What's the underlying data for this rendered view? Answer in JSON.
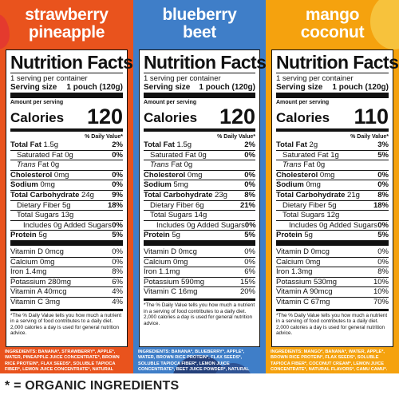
{
  "columns": [
    {
      "flavor_line1": "strawberry",
      "flavor_line2": "pineapple",
      "title": "Nutrition Facts",
      "servings_per_container": "1 serving per container",
      "serving_size_label": "Serving size",
      "serving_size_value": "1 pouch (120g)",
      "amount_per_serving": "Amount per serving",
      "calories_label": "Calories",
      "calories": "120",
      "dv_header": "% Daily Value*",
      "rows": [
        {
          "label": "Total Fat",
          "amount": "1.5g",
          "pct": "2%"
        },
        {
          "label": "Saturated Fat",
          "amount": "0g",
          "pct": "0%"
        },
        {
          "label": "Trans",
          "amount": "Fat 0g",
          "pct": ""
        },
        {
          "label": "Cholesterol",
          "amount": "0mg",
          "pct": "0%"
        },
        {
          "label": "Sodium",
          "amount": "0mg",
          "pct": "0%"
        },
        {
          "label": "Total Carbohydrate",
          "amount": "24g",
          "pct": "9%"
        },
        {
          "label": "Dietary Fiber",
          "amount": "5g",
          "pct": "18%"
        },
        {
          "label": "Total Sugars",
          "amount": "13g",
          "pct": ""
        },
        {
          "label": "Includes 0g Added Sugars",
          "amount": "",
          "pct": "0%"
        },
        {
          "label": "Protein",
          "amount": "5g",
          "pct": "5%"
        }
      ],
      "vitamins": [
        {
          "label": "Vitamin D 0mcg",
          "pct": "0%"
        },
        {
          "label": "Calcium 0mg",
          "pct": "0%"
        },
        {
          "label": "Iron 1.4mg",
          "pct": "8%"
        },
        {
          "label": "Potassium 280mg",
          "pct": "6%"
        },
        {
          "label": "Vitamin A 40mcg",
          "pct": "4%"
        },
        {
          "label": "Vitamin C 3mg",
          "pct": "4%"
        }
      ],
      "footnote": "*The % Daily Value tells you how much a nutrient in a serving of food contributes to a daily diet. 2,000 calories a day is used for general nutrition advice.",
      "ingredients": "INGREDIENTS: BANANA*, STRAWBERRY*, APPLE*, WATER, PINEAPPLE JUICE CONCENTRATE*, BROWN RICE PROTEIN*, FLAX SEEDS*, SOLUBLE TAPIOCA FIBER*, LEMON JUICE CONCENTRATE*, NATURAL FLAVORS*, CAMU CAMU*."
    },
    {
      "flavor_line1": "blueberry",
      "flavor_line2": "beet",
      "title": "Nutrition Facts",
      "servings_per_container": "1 serving per container",
      "serving_size_label": "Serving size",
      "serving_size_value": "1 pouch (120g)",
      "amount_per_serving": "Amount per serving",
      "calories_label": "Calories",
      "calories": "120",
      "dv_header": "% Daily Value*",
      "rows": [
        {
          "label": "Total Fat",
          "amount": "1.5g",
          "pct": "2%"
        },
        {
          "label": "Saturated Fat",
          "amount": "0g",
          "pct": "0%"
        },
        {
          "label": "Trans",
          "amount": "Fat 0g",
          "pct": ""
        },
        {
          "label": "Cholesterol",
          "amount": "0mg",
          "pct": "0%"
        },
        {
          "label": "Sodium",
          "amount": "5mg",
          "pct": "0%"
        },
        {
          "label": "Total Carbohydrate",
          "amount": "23g",
          "pct": "8%"
        },
        {
          "label": "Dietary Fiber",
          "amount": "6g",
          "pct": "21%"
        },
        {
          "label": "Total Sugars",
          "amount": "14g",
          "pct": ""
        },
        {
          "label": "Includes 0g Added Sugars",
          "amount": "",
          "pct": "0%"
        },
        {
          "label": "Protein",
          "amount": "5g",
          "pct": "5%"
        }
      ],
      "vitamins": [
        {
          "label": "Vitamin D 0mcg",
          "pct": "0%"
        },
        {
          "label": "Calcium 0mg",
          "pct": "0%"
        },
        {
          "label": "Iron 1.1mg",
          "pct": "6%"
        },
        {
          "label": "Potassium 590mg",
          "pct": "15%"
        },
        {
          "label": "Vitamin C 16mg",
          "pct": "20%"
        }
      ],
      "footnote": "*The % Daily Value tells you how much a nutrient in a serving of food contributes to a daily diet. 2,000 calories a day is used for general nutrition advice.",
      "ingredients": "INGREDIENTS: BANANA*, BLUEBERRY*, APPLE*, WATER, BROWN RICE PROTEIN*, FLAX SEEDS*, SOLUBLE TAPIOCA FIBER*, LEMON JUICE CONCENTRATE*, BEET JUICE POWDER*, NATURAL FLAVORS*, MAQUI BERRY*."
    },
    {
      "flavor_line1": "mango",
      "flavor_line2": "coconut",
      "title": "Nutrition Facts",
      "servings_per_container": "1 serving per container",
      "serving_size_label": "Serving size",
      "serving_size_value": "1 pouch (120g)",
      "amount_per_serving": "Amount per serving",
      "calories_label": "Calories",
      "calories": "110",
      "dv_header": "% Daily Value*",
      "rows": [
        {
          "label": "Total Fat",
          "amount": "2g",
          "pct": "3%"
        },
        {
          "label": "Saturated Fat",
          "amount": "1g",
          "pct": "5%"
        },
        {
          "label": "Trans",
          "amount": "Fat 0g",
          "pct": ""
        },
        {
          "label": "Cholesterol",
          "amount": "0mg",
          "pct": "0%"
        },
        {
          "label": "Sodium",
          "amount": "0mg",
          "pct": "0%"
        },
        {
          "label": "Total Carbohydrate",
          "amount": "21g",
          "pct": "8%"
        },
        {
          "label": "Dietary Fiber",
          "amount": "5g",
          "pct": "18%"
        },
        {
          "label": "Total Sugars",
          "amount": "12g",
          "pct": ""
        },
        {
          "label": "Includes 0g Added Sugars",
          "amount": "",
          "pct": "0%"
        },
        {
          "label": "Protein",
          "amount": "5g",
          "pct": "5%"
        }
      ],
      "vitamins": [
        {
          "label": "Vitamin D 0mcg",
          "pct": "0%"
        },
        {
          "label": "Calcium 0mg",
          "pct": "0%"
        },
        {
          "label": "Iron 1.3mg",
          "pct": "8%"
        },
        {
          "label": "Potassium 530mg",
          "pct": "10%"
        },
        {
          "label": "Vitamin A 90mcg",
          "pct": "10%"
        },
        {
          "label": "Vitamin C 67mg",
          "pct": "70%"
        }
      ],
      "footnote": "*The % Daily Value tells you how much a nutrient in a serving of food contributes to a daily diet. 2,000 calories a day is used for general nutrition advice.",
      "ingredients": "INGREDIENTS: MANGO*, BANANA*, WATER, APPLE*, BROWN RICE PROTEIN*, FLAX SEEDS*, SOLUBLE TAPIOCA FIBER*, COCONUT CREAM*, LEMON JUICE CONCENTRATE*, NATURAL FLAVORS*, CAMU CAMU*. CONTAINS: COCONUT"
    }
  ],
  "footer": {
    "text": "* = ORGANIC INGREDIENTS"
  },
  "colors": {
    "strawberry": "#e9531d",
    "blueberry": "#3f7ec8",
    "mango": "#f5a20e"
  }
}
